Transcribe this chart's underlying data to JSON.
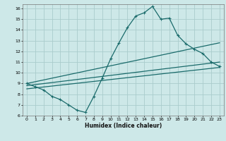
{
  "title": "",
  "xlabel": "Humidex (Indice chaleur)",
  "bg_color": "#cde8e8",
  "grid_color": "#aacccc",
  "line_color": "#1a6b6b",
  "xlim": [
    -0.5,
    23.5
  ],
  "ylim": [
    6,
    16.4
  ],
  "yticks": [
    6,
    7,
    8,
    9,
    10,
    11,
    12,
    13,
    14,
    15,
    16
  ],
  "xticks": [
    0,
    1,
    2,
    3,
    4,
    5,
    6,
    7,
    8,
    9,
    10,
    11,
    12,
    13,
    14,
    15,
    16,
    17,
    18,
    19,
    20,
    21,
    22,
    23
  ],
  "main_x": [
    0,
    1,
    2,
    3,
    4,
    5,
    6,
    7,
    8,
    9,
    10,
    11,
    12,
    13,
    14,
    15,
    16,
    17,
    18,
    19,
    20,
    21,
    22,
    23
  ],
  "main_y": [
    9.0,
    8.7,
    8.4,
    7.8,
    7.5,
    7.0,
    6.5,
    6.3,
    7.8,
    9.5,
    11.3,
    12.8,
    14.2,
    15.3,
    15.6,
    16.2,
    15.0,
    15.1,
    13.5,
    12.7,
    12.2,
    11.8,
    11.0,
    10.6
  ],
  "trend_lines": [
    {
      "x": [
        0,
        23
      ],
      "y": [
        9.0,
        12.8
      ]
    },
    {
      "x": [
        0,
        23
      ],
      "y": [
        8.8,
        11.0
      ]
    },
    {
      "x": [
        0,
        23
      ],
      "y": [
        8.5,
        10.5
      ]
    }
  ]
}
